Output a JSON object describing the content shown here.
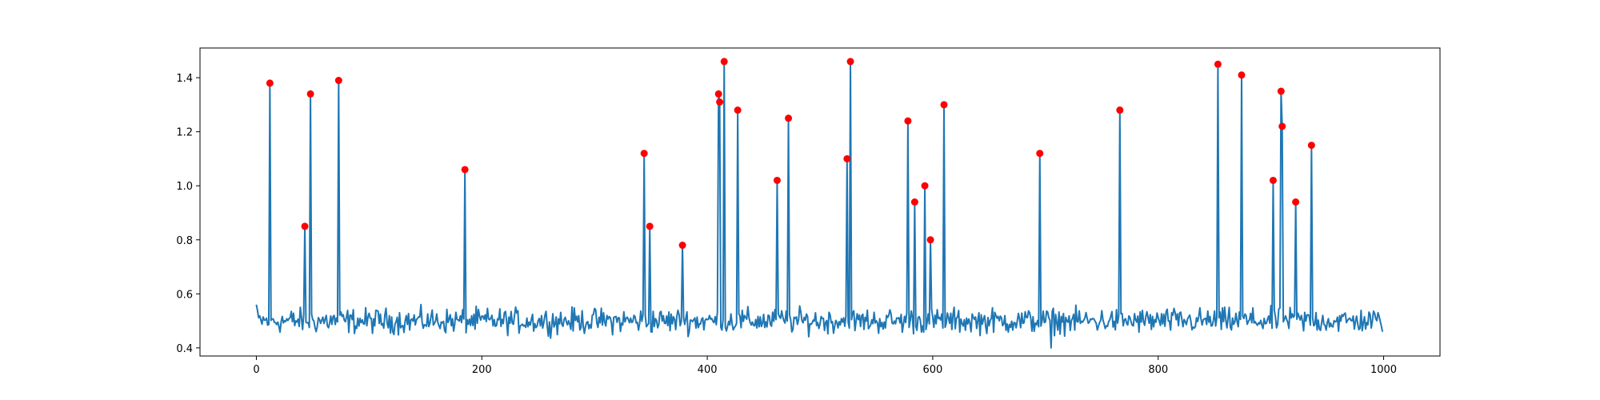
{
  "chart_data": {
    "type": "line",
    "title": "",
    "xlabel": "",
    "ylabel": "",
    "xlim": [
      -50,
      1050
    ],
    "ylim": [
      0.37,
      1.51
    ],
    "x_ticks": [
      0,
      200,
      400,
      600,
      800,
      1000
    ],
    "y_ticks": [
      0.4,
      0.6,
      0.8,
      1.0,
      1.2,
      1.4
    ],
    "x_tick_labels": [
      "0",
      "200",
      "400",
      "600",
      "800",
      "1000"
    ],
    "y_tick_labels": [
      "0.4",
      "0.6",
      "0.8",
      "1.0",
      "1.2",
      "1.4"
    ],
    "grid": false,
    "legend": "none",
    "noise_series": {
      "color": "#1f77b4",
      "n_points": 1000,
      "baseline": 0.5,
      "range": [
        0.4,
        0.58
      ]
    },
    "peaks": [
      {
        "x": 12,
        "y": 1.38
      },
      {
        "x": 43,
        "y": 0.85
      },
      {
        "x": 48,
        "y": 1.34
      },
      {
        "x": 73,
        "y": 1.39
      },
      {
        "x": 185,
        "y": 1.06
      },
      {
        "x": 344,
        "y": 1.12
      },
      {
        "x": 349,
        "y": 0.85
      },
      {
        "x": 378,
        "y": 0.78
      },
      {
        "x": 410,
        "y": 1.34
      },
      {
        "x": 411,
        "y": 1.31
      },
      {
        "x": 415,
        "y": 1.46
      },
      {
        "x": 427,
        "y": 1.28
      },
      {
        "x": 462,
        "y": 1.02
      },
      {
        "x": 472,
        "y": 1.25
      },
      {
        "x": 524,
        "y": 1.1
      },
      {
        "x": 527,
        "y": 1.46
      },
      {
        "x": 578,
        "y": 1.24
      },
      {
        "x": 584,
        "y": 0.94
      },
      {
        "x": 593,
        "y": 1.0
      },
      {
        "x": 598,
        "y": 0.8
      },
      {
        "x": 610,
        "y": 1.3
      },
      {
        "x": 695,
        "y": 1.12
      },
      {
        "x": 766,
        "y": 1.28
      },
      {
        "x": 853,
        "y": 1.45
      },
      {
        "x": 874,
        "y": 1.41
      },
      {
        "x": 902,
        "y": 1.02
      },
      {
        "x": 909,
        "y": 1.35
      },
      {
        "x": 910,
        "y": 1.22
      },
      {
        "x": 922,
        "y": 0.94
      },
      {
        "x": 936,
        "y": 1.15
      }
    ],
    "peak_marker_color": "#ff0000"
  }
}
